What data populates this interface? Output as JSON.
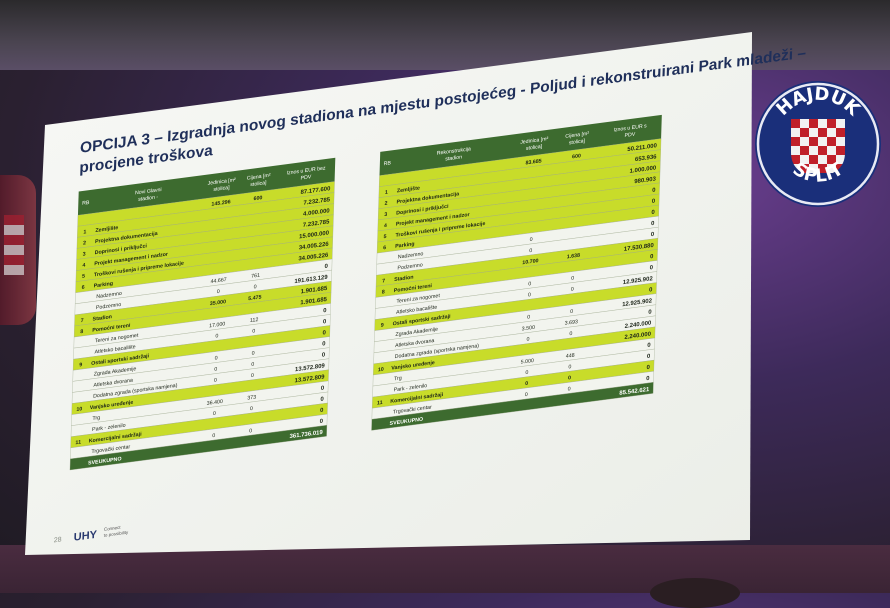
{
  "slide": {
    "title_line1": "OPCIJA 3 – Izgradnja novog stadiona na mjestu postojećeg - Poljud i rekonstruirani Park mladeži  –",
    "title_line2": "procjene troškova",
    "page_number": "28",
    "logo_text": "UHY",
    "logo_tagline_1": "Connect",
    "logo_tagline_2": "to possibility"
  },
  "left_table": {
    "headers": [
      "RB",
      "Novi Glavni stadion - lokacija Poljud",
      "Jedinica [m² stolica]",
      "Cijena [m² stolica]",
      "Iznos u EUR bez PDV"
    ],
    "rows": [
      {
        "rb": "",
        "name": "",
        "unit": "145.296",
        "price": "600",
        "amount": "87.177.600",
        "style": "green"
      },
      {
        "rb": "1",
        "name": "Zemljište",
        "unit": "",
        "price": "",
        "amount": "7.232.785",
        "style": "green"
      },
      {
        "rb": "2",
        "name": "Projektna dokumentacija",
        "unit": "",
        "price": "",
        "amount": "4.000.000",
        "style": "green"
      },
      {
        "rb": "3",
        "name": "Doprinosi i priključci",
        "unit": "",
        "price": "",
        "amount": "7.232.785",
        "style": "green"
      },
      {
        "rb": "4",
        "name": "Projekt management i nadzor",
        "unit": "",
        "price": "",
        "amount": "15.000.000",
        "style": "green"
      },
      {
        "rb": "5",
        "name": "Troškovi rušenja i pripreme lokacije",
        "unit": "",
        "price": "",
        "amount": "34.005.226",
        "style": "green"
      },
      {
        "rb": "6",
        "name": "Parking",
        "unit": "",
        "price": "",
        "amount": "34.005.226",
        "style": "green"
      },
      {
        "rb": "",
        "name": "Nadzemno",
        "unit": "44.667",
        "price": "761",
        "amount": "0",
        "style": "white"
      },
      {
        "rb": "",
        "name": "Podzemno",
        "unit": "0",
        "price": "0",
        "amount": "191.613.129",
        "style": "white"
      },
      {
        "rb": "7",
        "name": "Stadion",
        "unit": "35.000",
        "price": "5.475",
        "amount": "1.901.685",
        "style": "green"
      },
      {
        "rb": "8",
        "name": "Pomoćni tereni",
        "unit": "",
        "price": "",
        "amount": "1.901.685",
        "style": "green"
      },
      {
        "rb": "",
        "name": "Tereni za nogomet",
        "unit": "17.000",
        "price": "112",
        "amount": "0",
        "style": "white"
      },
      {
        "rb": "",
        "name": "Atletsko bacalište",
        "unit": "0",
        "price": "0",
        "amount": "0",
        "style": "white"
      },
      {
        "rb": "9",
        "name": "Ostali sportski sadržaji",
        "unit": "",
        "price": "",
        "amount": "0",
        "style": "green"
      },
      {
        "rb": "",
        "name": "Zgrada Akademije",
        "unit": "0",
        "price": "0",
        "amount": "0",
        "style": "white"
      },
      {
        "rb": "",
        "name": "Atletska dvorana",
        "unit": "0",
        "price": "0",
        "amount": "0",
        "style": "white"
      },
      {
        "rb": "",
        "name": "Dodatna zgrada (sportska namjena)",
        "unit": "0",
        "price": "0",
        "amount": "13.572.809",
        "style": "white"
      },
      {
        "rb": "10",
        "name": "Vanjsko uređenje",
        "unit": "",
        "price": "",
        "amount": "13.572.809",
        "style": "green"
      },
      {
        "rb": "",
        "name": "Trg",
        "unit": "36.400",
        "price": "373",
        "amount": "0",
        "style": "white"
      },
      {
        "rb": "",
        "name": "Park - zelenilo",
        "unit": "0",
        "price": "0",
        "amount": "0",
        "style": "white"
      },
      {
        "rb": "11",
        "name": "Komercijalni sadržaji",
        "unit": "",
        "price": "",
        "amount": "0",
        "style": "green"
      },
      {
        "rb": "",
        "name": "Trgovački centar",
        "unit": "0",
        "price": "0",
        "amount": "0",
        "style": "white"
      },
      {
        "rb": "",
        "name": "SVEUKUPNO",
        "unit": "",
        "price": "",
        "amount": "361.736.019",
        "style": "dark"
      }
    ]
  },
  "right_table": {
    "headers": [
      "RB",
      "Rekonstrukcija stadion Brodarica",
      "Jedinica [m² stolica]",
      "Cijena [m² stolica]",
      "Iznos u EUR s PDV"
    ],
    "rows": [
      {
        "rb": "",
        "name": "",
        "unit": "83.685",
        "price": "600",
        "amount": "50.211.000",
        "style": "green"
      },
      {
        "rb": "1",
        "name": "Zemljište",
        "unit": "",
        "price": "",
        "amount": "653.936",
        "style": "green"
      },
      {
        "rb": "2",
        "name": "Projektna dokumentacija",
        "unit": "",
        "price": "",
        "amount": "1.000.000",
        "style": "green"
      },
      {
        "rb": "3",
        "name": "Doprinosi i priključci",
        "unit": "",
        "price": "",
        "amount": "980.903",
        "style": "green"
      },
      {
        "rb": "4",
        "name": "Projekt management i nadzor",
        "unit": "",
        "price": "",
        "amount": "0",
        "style": "green"
      },
      {
        "rb": "5",
        "name": "Troškovi rušenja i pripreme lokacije",
        "unit": "",
        "price": "",
        "amount": "0",
        "style": "green"
      },
      {
        "rb": "6",
        "name": "Parking",
        "unit": "",
        "price": "",
        "amount": "0",
        "style": "green"
      },
      {
        "rb": "",
        "name": "Nadzemno",
        "unit": "0",
        "price": "",
        "amount": "0",
        "style": "white"
      },
      {
        "rb": "",
        "name": "Podzemno",
        "unit": "0",
        "price": "",
        "amount": "0",
        "style": "white"
      },
      {
        "rb": "7",
        "name": "Stadion",
        "unit": "10.700",
        "price": "1.638",
        "amount": "17.530.880",
        "style": "green"
      },
      {
        "rb": "8",
        "name": "Pomoćni tereni",
        "unit": "",
        "price": "",
        "amount": "0",
        "style": "green"
      },
      {
        "rb": "",
        "name": "Tereni za nogomet",
        "unit": "0",
        "price": "0",
        "amount": "0",
        "style": "white"
      },
      {
        "rb": "",
        "name": "Atletsko bacalište",
        "unit": "0",
        "price": "0",
        "amount": "12.925.902",
        "style": "white"
      },
      {
        "rb": "9",
        "name": "Ostali sportski sadržaji",
        "unit": "",
        "price": "",
        "amount": "0",
        "style": "green"
      },
      {
        "rb": "",
        "name": "Zgrada Akademije",
        "unit": "0",
        "price": "0",
        "amount": "12.925.902",
        "style": "white"
      },
      {
        "rb": "",
        "name": "Atletska dvorana",
        "unit": "3.500",
        "price": "3.693",
        "amount": "0",
        "style": "white"
      },
      {
        "rb": "",
        "name": "Dodatna zgrada (sportska namjena)",
        "unit": "0",
        "price": "0",
        "amount": "2.240.000",
        "style": "white"
      },
      {
        "rb": "10",
        "name": "Vanjsko uređenje",
        "unit": "",
        "price": "",
        "amount": "2.240.000",
        "style": "green"
      },
      {
        "rb": "",
        "name": "Trg",
        "unit": "5.000",
        "price": "448",
        "amount": "0",
        "style": "white"
      },
      {
        "rb": "",
        "name": "Park - zelenilo",
        "unit": "0",
        "price": "0",
        "amount": "0",
        "style": "white"
      },
      {
        "rb": "11",
        "name": "Komercijalni sadržaji",
        "unit": "0",
        "price": "0",
        "amount": "0",
        "style": "green"
      },
      {
        "rb": "",
        "name": "Trgovački centar",
        "unit": "0",
        "price": "0",
        "amount": "0",
        "style": "white"
      },
      {
        "rb": "",
        "name": "SVEUKUPNO",
        "unit": "",
        "price": "",
        "amount": "85.542.621",
        "style": "dark"
      }
    ]
  },
  "badge": {
    "top_text": "HAJDUK",
    "bottom_text": "SPLIT"
  },
  "colors": {
    "green": "#c8dc2a",
    "dark_green": "#3d6b2f",
    "white_row": "#f2f4ee",
    "slide_bg": "#f5f7f3",
    "badge_blue": "#1a2f7a",
    "badge_red": "#c0202a"
  }
}
